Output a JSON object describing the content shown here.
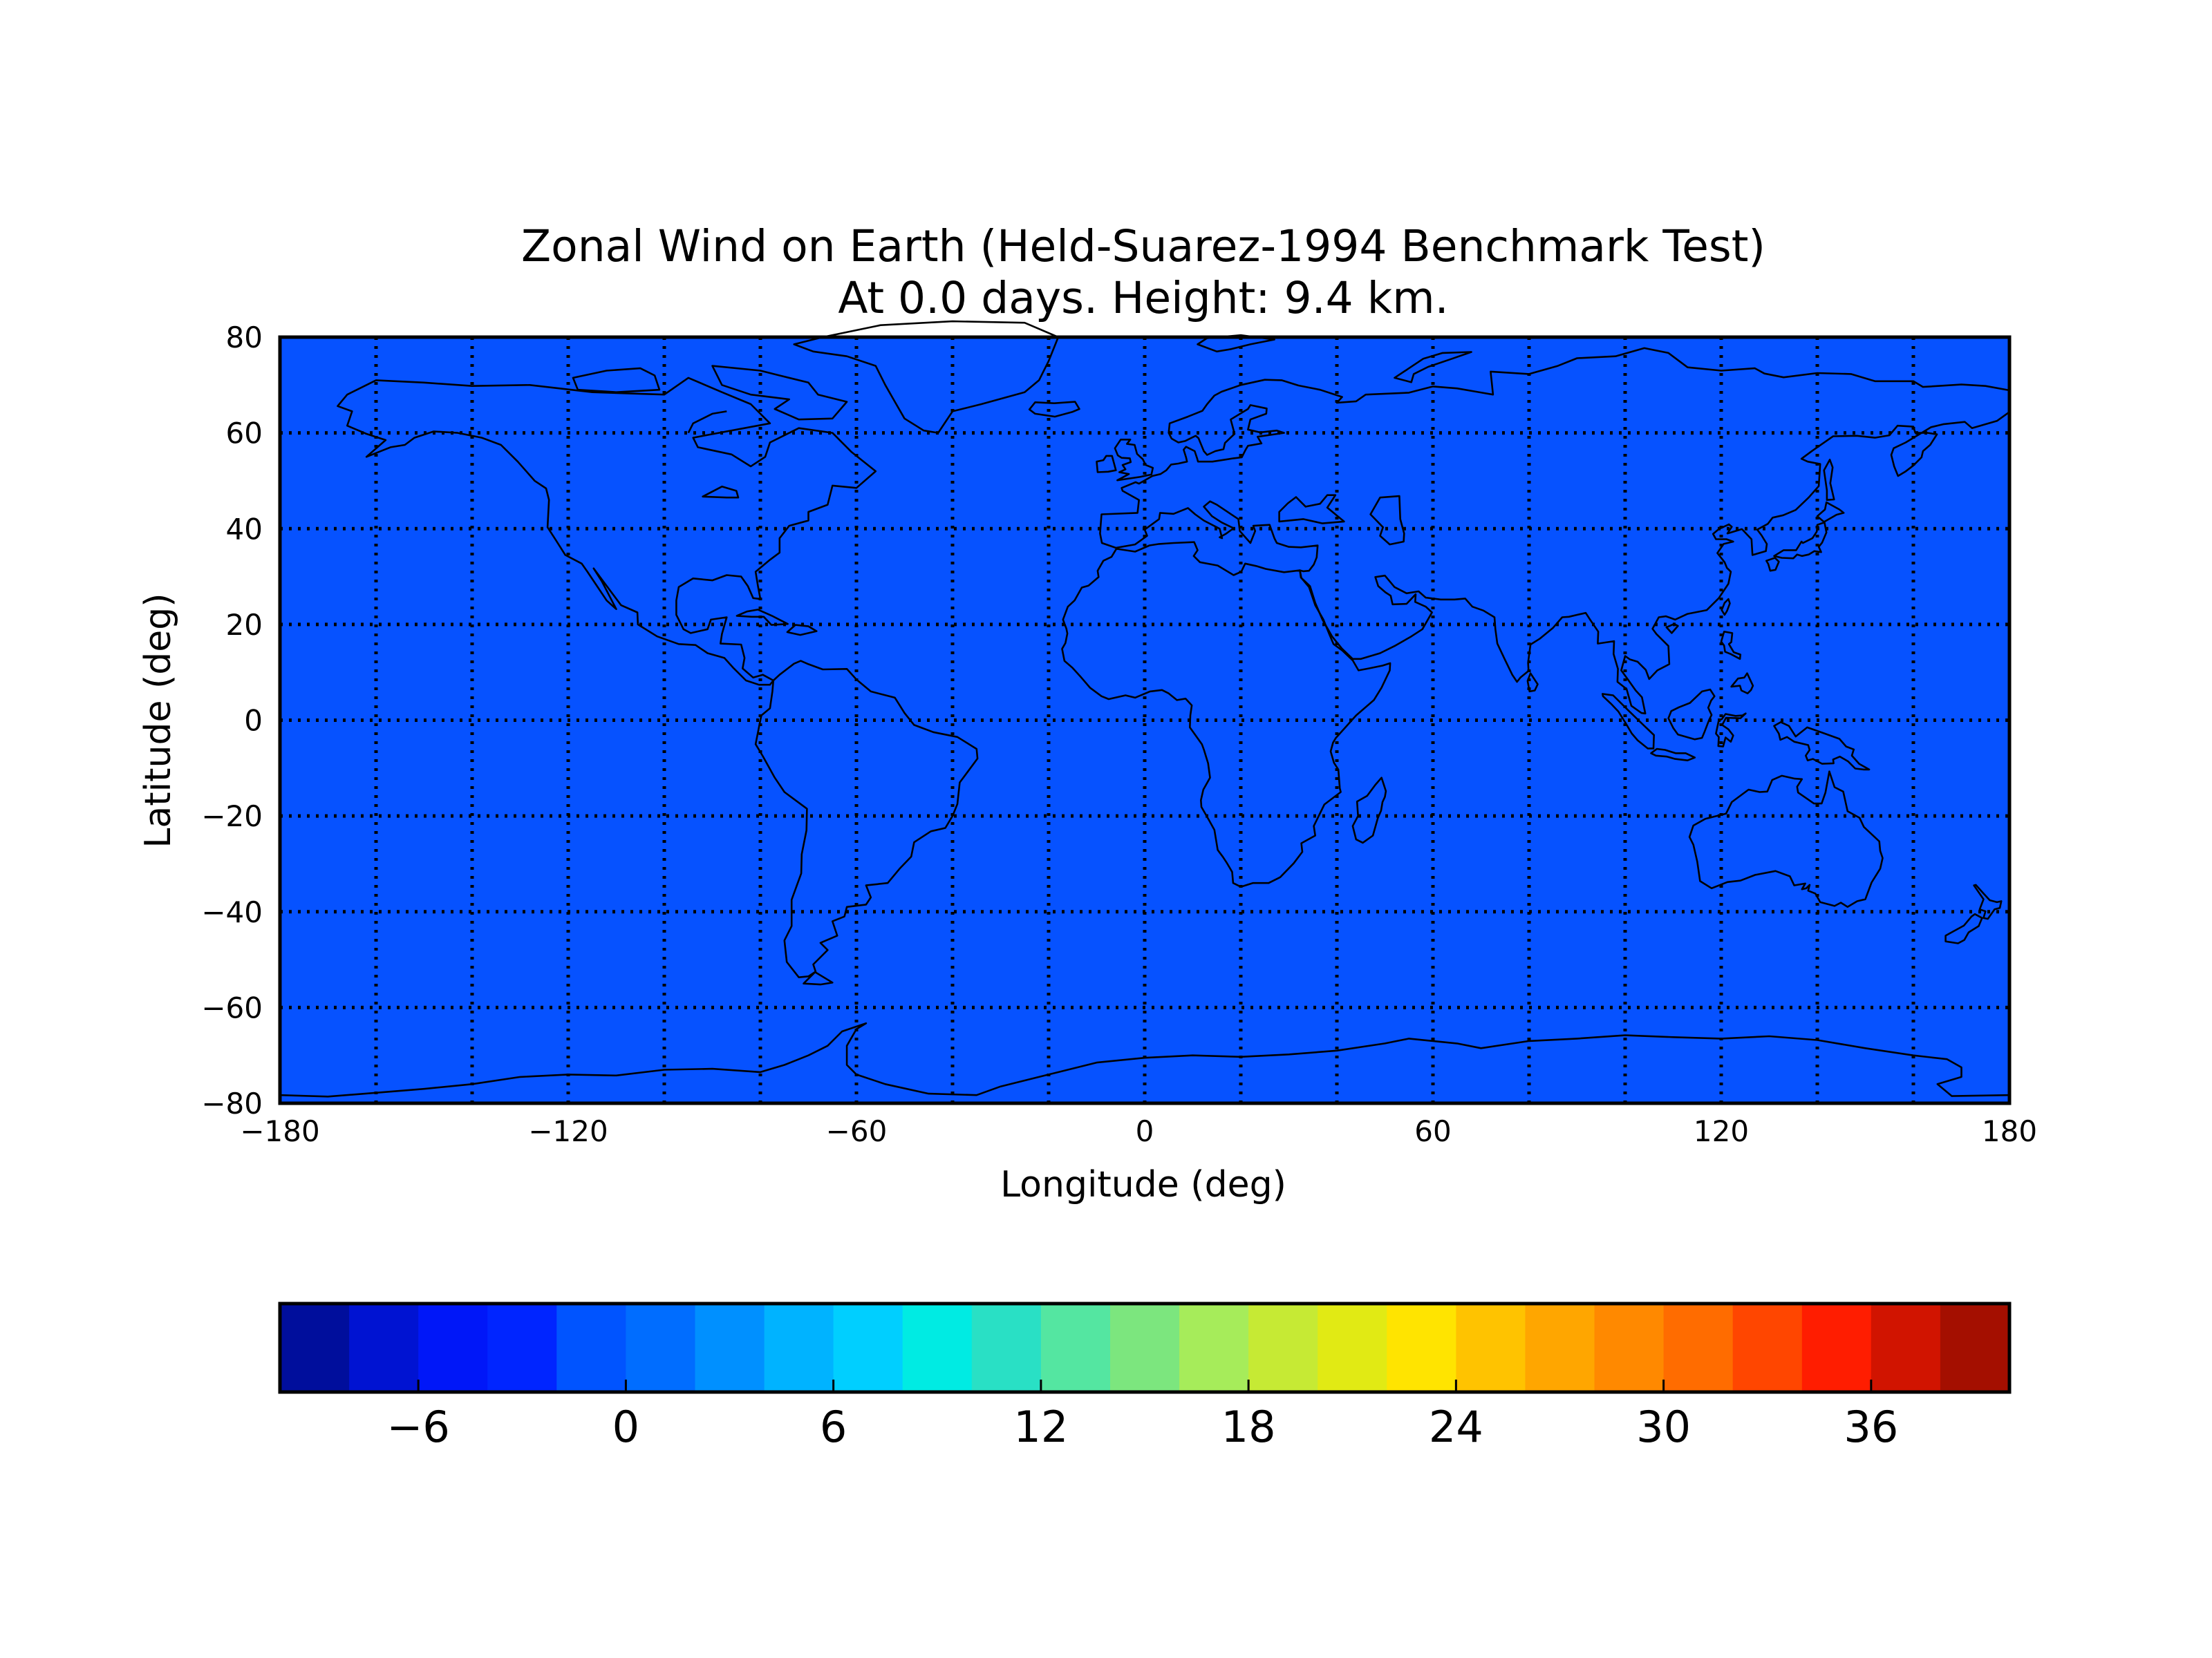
{
  "chart_data": {
    "type": "heatmap",
    "title": "Zonal Wind on Earth (Held-Suarez-1994 Benchmark Test)",
    "subtitle": "At 0.0 days. Height: 9.4 km.",
    "xlabel": "Longitude (deg)",
    "ylabel": "Latitude (deg)",
    "xlim": [
      -180,
      180
    ],
    "ylim": [
      -80,
      80
    ],
    "x_ticks": [
      -180,
      -120,
      -60,
      0,
      60,
      120,
      180
    ],
    "y_ticks": [
      -80,
      -60,
      -40,
      -20,
      0,
      20,
      40,
      60,
      80
    ],
    "x_tick_labels": [
      "−180",
      "−120",
      "−60",
      "0",
      "60",
      "120",
      "180"
    ],
    "y_tick_labels": [
      "−80",
      "−60",
      "−40",
      "−20",
      "0",
      "20",
      "40",
      "60",
      "80"
    ],
    "grid": true,
    "grid_lon_spacing": 20,
    "grid_lat_spacing": 20,
    "field_value": 0,
    "field_color": "#0652ff",
    "coastlines": true,
    "colorbar": {
      "orientation": "horizontal",
      "placement": "bottom",
      "min": -10,
      "max": 40,
      "step": 2,
      "ticks": [
        -6,
        0,
        6,
        12,
        18,
        24,
        30,
        36
      ],
      "tick_labels": [
        "−6",
        "0",
        "6",
        "12",
        "18",
        "24",
        "30",
        "36"
      ],
      "colors": [
        "#000e9c",
        "#0013d2",
        "#0017f8",
        "#0025ff",
        "#0054ff",
        "#006dff",
        "#0090ff",
        "#00b3ff",
        "#00cfff",
        "#00ebe3",
        "#29e0c5",
        "#54e6a1",
        "#7ce67e",
        "#a6ec5a",
        "#c6ea34",
        "#e1ea14",
        "#ffe400",
        "#ffc300",
        "#ffa600",
        "#ff8900",
        "#ff6c00",
        "#ff4600",
        "#ff1d00",
        "#d11400",
        "#a40f00"
      ]
    }
  }
}
